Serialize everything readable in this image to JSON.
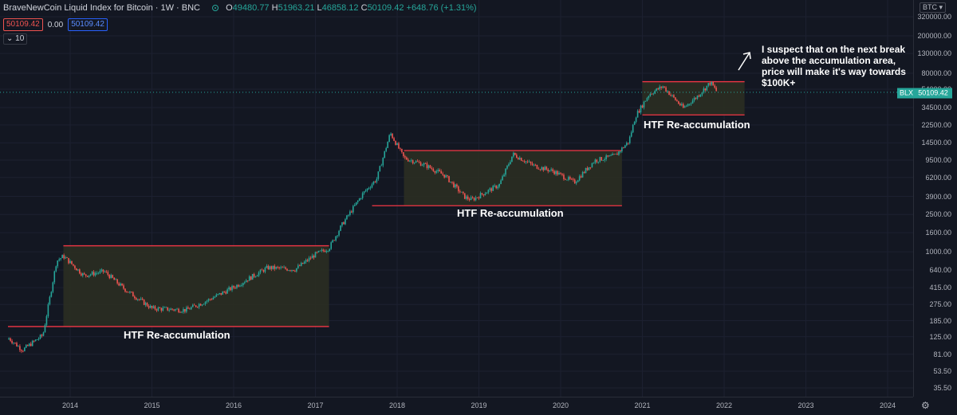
{
  "header": {
    "title": "BraveNewCoin Liquid Index for Bitcoin · 1W · BNC",
    "open_label": "O",
    "open": "49480.77",
    "high_label": "H",
    "high": "51963.21",
    "low_label": "L",
    "low": "46858.12",
    "close_label": "C",
    "close": "50109.42",
    "change": "+648.76 (+1.31%)"
  },
  "toolbar": {
    "sell_price": "50109.42",
    "spread": "0.00",
    "buy_price": "50109.42",
    "indicators_count": "10"
  },
  "price_axis": {
    "currency": "BTC",
    "labels": [
      "320000.00",
      "200000.00",
      "130000.00",
      "80000.00",
      "54000.00",
      "34500.00",
      "22500.00",
      "14500.00",
      "9500.00",
      "6200.00",
      "3900.00",
      "2500.00",
      "1600.00",
      "1000.00",
      "640.00",
      "415.00",
      "275.00",
      "185.00",
      "125.00",
      "81.00",
      "53.50",
      "35.50"
    ],
    "current_price": "50109.42",
    "symbol_tag": "BLX"
  },
  "time_axis": {
    "labels": [
      "2014",
      "2015",
      "2016",
      "2017",
      "2018",
      "2019",
      "2020",
      "2021",
      "2022",
      "2023",
      "2024"
    ]
  },
  "annotations": {
    "range1_label": "HTF Re-accumulation",
    "range2_label": "HTF Re-accumulation",
    "range3_label": "HTF Re-accumulation",
    "note": "I suspect that on the next break above the accumulation area, price will make it's way towards $100K+"
  },
  "colors": {
    "background": "#131722",
    "up": "#26a69a",
    "down": "#ef5350",
    "range_line": "#f23645",
    "range_fill": "#2b2e22"
  },
  "chart_data": {
    "type": "candlestick",
    "scale": "log",
    "x": [
      "2013-04",
      "2013-06",
      "2013-09",
      "2013-11",
      "2013-12",
      "2014-03",
      "2014-06",
      "2014-09",
      "2015-01",
      "2015-06",
      "2015-09",
      "2016-01",
      "2016-06",
      "2016-10",
      "2017-01",
      "2017-03",
      "2017-05",
      "2017-08",
      "2017-10",
      "2017-12",
      "2018-02",
      "2018-05",
      "2018-08",
      "2018-11",
      "2018-12",
      "2019-04",
      "2019-06",
      "2019-09",
      "2019-12",
      "2020-03",
      "2020-06",
      "2020-09",
      "2020-11",
      "2020-12",
      "2021-02",
      "2021-04",
      "2021-07",
      "2021-09",
      "2021-11",
      "2021-12"
    ],
    "y": [
      120,
      90,
      130,
      800,
      900,
      560,
      620,
      400,
      250,
      240,
      300,
      420,
      680,
      650,
      940,
      1100,
      2000,
      4200,
      6000,
      18500,
      10000,
      8500,
      6500,
      3800,
      3600,
      5200,
      11000,
      8300,
      7200,
      5500,
      9400,
      10600,
      15000,
      28000,
      48000,
      58000,
      34000,
      45000,
      64000,
      50109.42
    ],
    "ranges": [
      {
        "label": "HTF Re-accumulation",
        "from": "2013-12",
        "to": "2017-03",
        "low": 160,
        "high": 1160
      },
      {
        "label": "HTF Re-accumulation",
        "from": "2018-02",
        "to": "2020-10",
        "low": 3100,
        "high": 12000
      },
      {
        "label": "HTF Re-accumulation",
        "from": "2021-01",
        "to": "2022-04",
        "low": 28800,
        "high": 65000
      }
    ]
  }
}
